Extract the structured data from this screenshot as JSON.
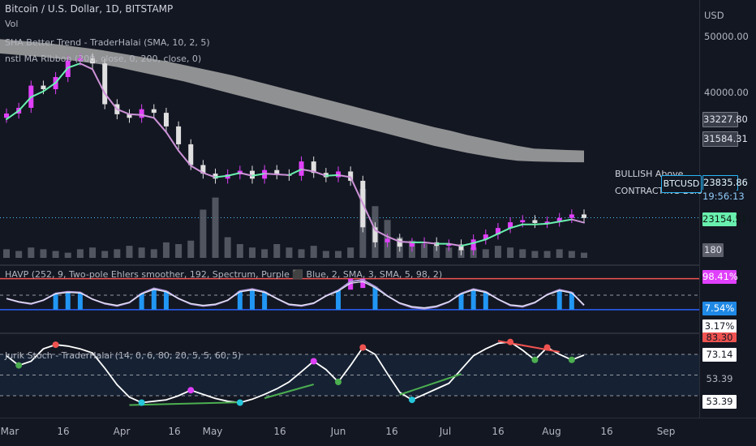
{
  "header": {
    "symbol_line": "Bitcoin / U.S. Dollar, 1D, BITSTAMP",
    "vol_label": "Vol",
    "indicator1": "SHA Better Trend - TraderHalai (SMA, 10, 2, 5)",
    "indicator2": "nstl MA Ribbon (200, close, 0, 200, close, 0)",
    "havp_label": "HAVP (252, 9, Two-pole Ehlers smoother, 192, Spectrum, Purple ⬛ Blue, 2, SMA, 3, SMA, 5, 98, 2)",
    "stoch_label": "Jurik Stoch - TraderHalai (14, 0, 6, 80, 20, 5, 5, 60, 5)"
  },
  "axis": {
    "currency": "USD",
    "price_ticks": [
      "50000.00",
      "40000.00"
    ],
    "tags": {
      "ma_upper": "33227.80",
      "ma_lower": "31584.31",
      "last": "23835.86",
      "countdown": "19:56:13",
      "trend": "23154.51",
      "volume": "180",
      "havp_high": "98.41%",
      "havp_low": "7.54%",
      "havp_val": "3.17%",
      "stoch_hi": "83.30",
      "stoch_a": "73.14",
      "stoch_b": "53.39",
      "stoch_c": "53.39"
    },
    "badge": "BTCUSD",
    "signal1": "BULLISH Above",
    "signal2": "CONTRACTING Below"
  },
  "chart_data": {
    "type": "line",
    "x_ticks": [
      "Mar",
      "16",
      "Apr",
      "16",
      "May",
      "16",
      "Jun",
      "16",
      "Jul",
      "16",
      "Aug",
      "16",
      "Sep"
    ],
    "price_axis": {
      "min": 18000,
      "max": 52000,
      "ticks": [
        50000,
        40000
      ]
    },
    "colors": {
      "bull": "#e040fb",
      "bear": "#e0e0e0",
      "trend_up": "#69f0ae",
      "trend_down": "#ce93d8",
      "ribbon": "#9e9e9e"
    },
    "price_close": [
      38400,
      39200,
      42300,
      41800,
      43500,
      45800,
      46100,
      45400,
      39700,
      38300,
      37800,
      39000,
      38500,
      36600,
      34100,
      31200,
      30000,
      29300,
      29900,
      30400,
      29300,
      30500,
      29900,
      29700,
      31700,
      30100,
      29500,
      30300,
      29000,
      22500,
      20400,
      20900,
      19800,
      20300,
      20400,
      19900,
      20100,
      19300,
      20800,
      21500,
      22400,
      23200,
      23500,
      23100,
      23300,
      23800,
      24300,
      23800
    ],
    "trend_line": [
      37600,
      38800,
      40700,
      41500,
      42700,
      44800,
      45400,
      44600,
      41200,
      39000,
      38300,
      38200,
      37800,
      35800,
      33200,
      31100,
      30100,
      29500,
      29700,
      30100,
      29700,
      30000,
      29900,
      29800,
      30600,
      30300,
      29700,
      29800,
      29500,
      25800,
      22100,
      21200,
      20500,
      20400,
      20400,
      20200,
      20200,
      19900,
      20300,
      20800,
      21600,
      22400,
      22900,
      22900,
      23000,
      23300,
      23600,
      23150
    ],
    "ribbon_upper": [
      48800,
      48600,
      48400,
      48200,
      47900,
      47600,
      47300,
      46900,
      46500,
      46100,
      45700,
      45200,
      44700,
      44200,
      43700,
      43100,
      42500,
      41900,
      41300,
      40700,
      40100,
      39500,
      38900,
      38300,
      37700,
      37100,
      36500,
      36000,
      35400,
      34900,
      34400,
      33900,
      33500,
      33400,
      33300,
      33230
    ],
    "ribbon_lower": [
      46800,
      46600,
      46400,
      46200,
      45900,
      45600,
      45300,
      44900,
      44400,
      43900,
      43400,
      42900,
      42300,
      41700,
      41100,
      40500,
      39900,
      39300,
      38700,
      38100,
      37500,
      36900,
      36300,
      35700,
      35100,
      34500,
      33900,
      33400,
      32900,
      32500,
      32100,
      31800,
      31700,
      31650,
      31600,
      31584
    ],
    "volume": [
      5,
      4,
      6,
      5,
      4,
      3,
      5,
      6,
      4,
      5,
      7,
      6,
      5,
      9,
      8,
      10,
      28,
      35,
      12,
      8,
      6,
      5,
      8,
      6,
      5,
      7,
      4,
      4,
      6,
      40,
      30,
      22,
      12,
      10,
      8,
      7,
      6,
      5,
      6,
      5,
      7,
      6,
      5,
      4,
      4,
      5,
      4,
      3
    ],
    "havp": [
      40,
      30,
      24,
      35,
      55,
      60,
      58,
      38,
      25,
      18,
      28,
      55,
      70,
      62,
      40,
      24,
      18,
      22,
      35,
      62,
      68,
      60,
      40,
      22,
      18,
      26,
      48,
      64,
      90,
      95,
      75,
      48,
      26,
      14,
      10,
      16,
      30,
      55,
      68,
      60,
      38,
      20,
      16,
      28,
      52,
      66,
      58,
      20
    ],
    "havp_bounds": {
      "upper": 98.41,
      "lower": 7.54
    },
    "stoch": [
      78,
      64,
      70,
      88,
      94,
      92,
      88,
      82,
      60,
      36,
      18,
      10,
      12,
      14,
      20,
      28,
      22,
      16,
      12,
      10,
      15,
      22,
      30,
      40,
      55,
      70,
      58,
      40,
      64,
      90,
      80,
      52,
      25,
      14,
      22,
      30,
      38,
      58,
      78,
      88,
      96,
      98,
      86,
      72,
      90,
      80,
      72,
      79
    ],
    "stoch_levels": [
      80,
      50,
      20
    ]
  }
}
